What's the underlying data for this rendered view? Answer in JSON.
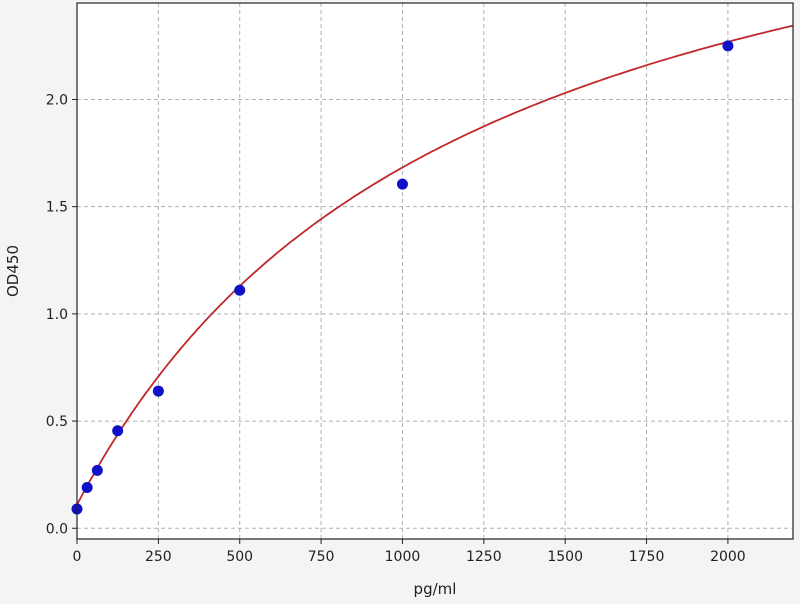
{
  "chart_data": {
    "type": "scatter",
    "title": "",
    "xlabel": "pg/ml",
    "ylabel": "OD450",
    "xlim": [
      0,
      2200
    ],
    "ylim": [
      -0.05,
      2.45
    ],
    "xticks": [
      0,
      250,
      500,
      750,
      1000,
      1250,
      1500,
      1750,
      2000
    ],
    "xtick_labels": [
      "0",
      "250",
      "500",
      "750",
      "1000",
      "1250",
      "1500",
      "1750",
      "2000"
    ],
    "yticks": [
      0.0,
      0.5,
      1.0,
      1.5,
      2.0
    ],
    "ytick_labels": [
      "0.0",
      "0.5",
      "1.0",
      "1.5",
      "2.0"
    ],
    "grid": true,
    "series": [
      {
        "type": "scatter",
        "x": [
          0,
          31.25,
          62.5,
          125,
          250,
          500,
          1000,
          2000
        ],
        "y": [
          0.09,
          0.19,
          0.27,
          0.455,
          0.64,
          1.11,
          1.605,
          2.25
        ],
        "color": "#1010c8"
      },
      {
        "type": "line",
        "fit": "curve",
        "color": "#c0282a"
      }
    ]
  }
}
